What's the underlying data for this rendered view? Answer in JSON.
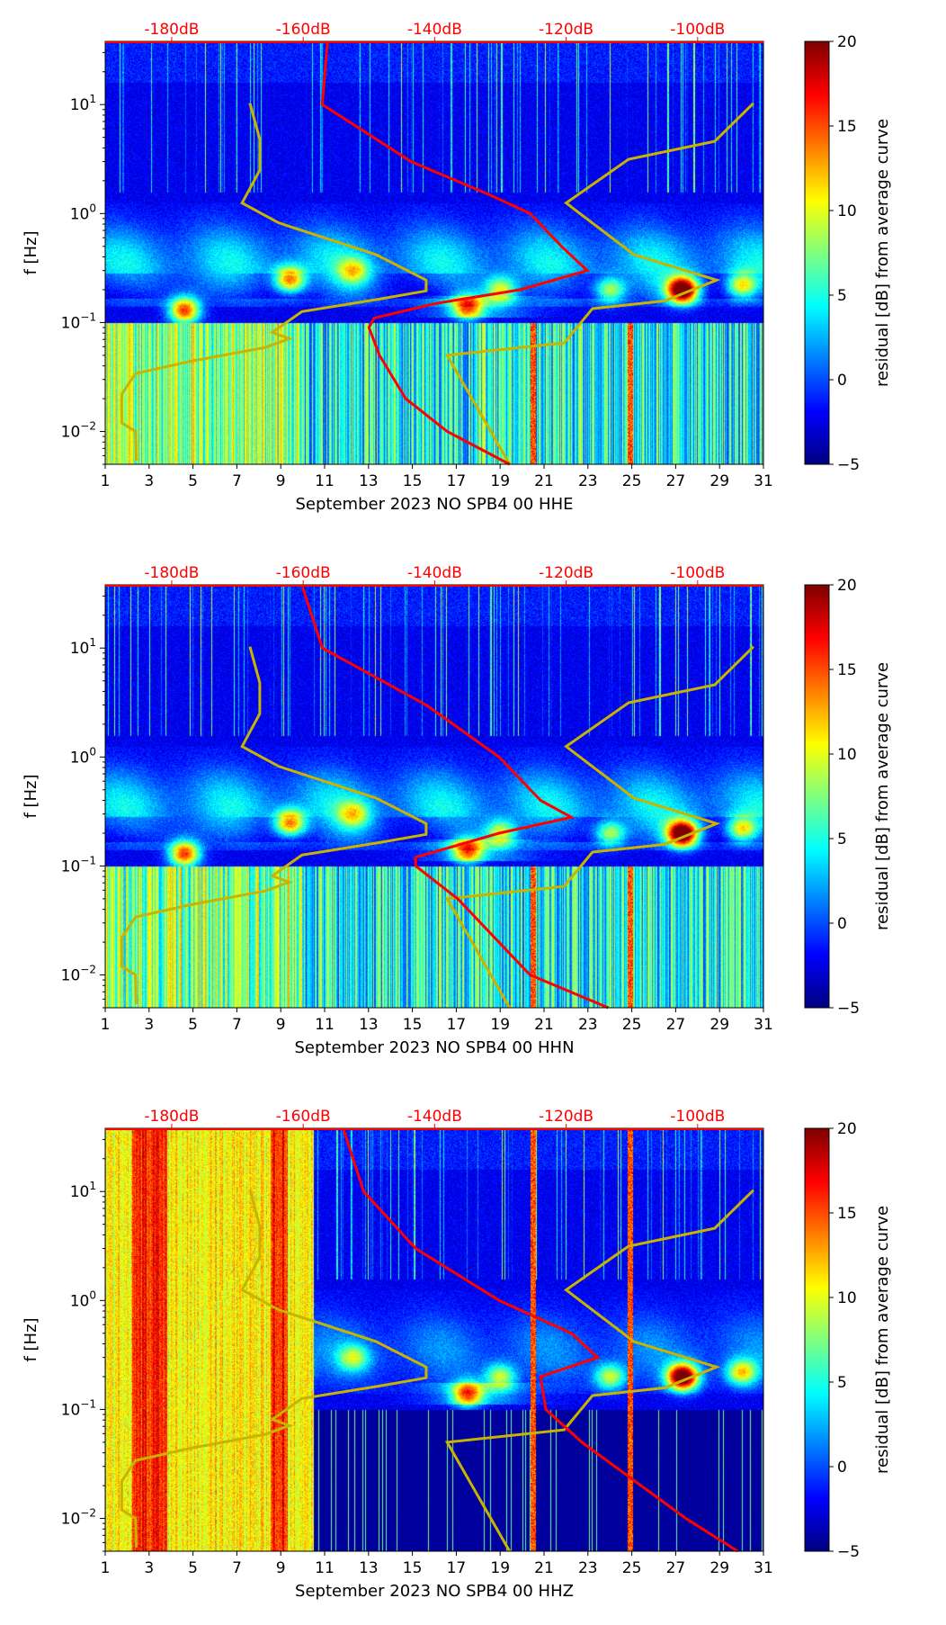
{
  "chart_data": [
    {
      "type": "heatmap",
      "title": "",
      "xlabel": "September 2023 NO SPB4 00 HHE",
      "ylabel": "f [Hz]",
      "colorbar_label": "residual [dB] from average curve",
      "xlim": [
        1,
        31
      ],
      "ylim": [
        0.005,
        38
      ],
      "yscale": "log",
      "x_ticks": [
        "1",
        "3",
        "5",
        "7",
        "9",
        "11",
        "13",
        "15",
        "17",
        "19",
        "21",
        "23",
        "25",
        "27",
        "29",
        "31"
      ],
      "y_ticks": [
        {
          "value": 10,
          "label": "10",
          "exp": "1"
        },
        {
          "value": 1,
          "label": "10",
          "exp": "0"
        },
        {
          "value": 0.1,
          "label": "10",
          "exp": "−1"
        },
        {
          "value": 0.01,
          "label": "10",
          "exp": "−2"
        }
      ],
      "top_axis_ticks": [
        "-180dB",
        "-160dB",
        "-140dB",
        "-120dB",
        "-100dB"
      ],
      "colorbar_range": [
        -5,
        20
      ],
      "colorbar_ticks": [
        "−5",
        "0",
        "5",
        "10",
        "15",
        "20"
      ],
      "colormap": "jet",
      "average_curve_db": {
        "color": "#ff0000",
        "f": [
          38,
          10,
          3,
          1.5,
          1,
          0.5,
          0.3,
          0.2,
          0.15,
          0.11,
          0.09,
          0.05,
          0.02,
          0.01,
          0.005
        ],
        "db": [
          -156.3,
          -157.1,
          -143.6,
          -131.8,
          -125.5,
          -120.7,
          -116.8,
          -127,
          -139.7,
          -149.2,
          -150,
          -148.4,
          -144.4,
          -138.1,
          -128.6
        ]
      },
      "noise_model_low_db": {
        "color": "#c8b400",
        "f": [
          10.3,
          4.8,
          2.5,
          1.25,
          0.82,
          0.42,
          0.245,
          0.195,
          0.164,
          0.126,
          0.081,
          0.071,
          0.059,
          0.044,
          0.034,
          0.022,
          0.012,
          0.01,
          0.0054
        ],
        "db": [
          -168.1,
          -166.6,
          -166.6,
          -169.3,
          -163.7,
          -148.9,
          -141.3,
          -141.3,
          -148.4,
          -160.2,
          -164.7,
          -162.1,
          -165.8,
          -177.2,
          -185.5,
          -187.6,
          -187.6,
          -185.5,
          -185.4
        ]
      },
      "noise_model_high_db": {
        "color": "#c8b400",
        "f": [
          10.3,
          4.6,
          3.15,
          1.25,
          0.42,
          0.245,
          0.158,
          0.134,
          0.065,
          0.05,
          0.005
        ],
        "db": [
          -91.5,
          -97.4,
          -110.5,
          -120,
          -109.7,
          -97.1,
          -105,
          -116,
          -120.3,
          -138.1,
          -128.6
        ]
      }
    },
    {
      "type": "heatmap",
      "title": "",
      "xlabel": "September 2023 NO SPB4 00 HHN",
      "ylabel": "f [Hz]",
      "colorbar_label": "residual [dB] from average curve",
      "xlim": [
        1,
        31
      ],
      "ylim": [
        0.005,
        38
      ],
      "yscale": "log",
      "x_ticks": [
        "1",
        "3",
        "5",
        "7",
        "9",
        "11",
        "13",
        "15",
        "17",
        "19",
        "21",
        "23",
        "25",
        "27",
        "29",
        "31"
      ],
      "y_ticks": [
        {
          "value": 10,
          "label": "10",
          "exp": "1"
        },
        {
          "value": 1,
          "label": "10",
          "exp": "0"
        },
        {
          "value": 0.1,
          "label": "10",
          "exp": "−1"
        },
        {
          "value": 0.01,
          "label": "10",
          "exp": "−2"
        }
      ],
      "top_axis_ticks": [
        "-180dB",
        "-160dB",
        "-140dB",
        "-120dB",
        "-100dB"
      ],
      "colorbar_range": [
        -5,
        20
      ],
      "colorbar_ticks": [
        "−5",
        "0",
        "5",
        "10",
        "15",
        "20"
      ],
      "colormap": "jet",
      "average_curve_db": {
        "color": "#ff0000",
        "f": [
          38,
          10,
          3,
          1,
          0.4,
          0.28,
          0.2,
          0.12,
          0.1,
          0.05,
          0.01,
          0.005
        ],
        "db": [
          -160.2,
          -157.1,
          -141.3,
          -130.2,
          -123.9,
          -119.2,
          -130.2,
          -142.9,
          -142.9,
          -136.5,
          -125.5,
          -113.6
        ]
      },
      "noise_model_low_db": {
        "color": "#c8b400",
        "f": [
          10.3,
          4.8,
          2.5,
          1.25,
          0.82,
          0.42,
          0.245,
          0.195,
          0.164,
          0.126,
          0.081,
          0.071,
          0.059,
          0.044,
          0.034,
          0.022,
          0.012,
          0.01,
          0.0054
        ],
        "db": [
          -168.1,
          -166.6,
          -166.6,
          -169.3,
          -163.7,
          -148.9,
          -141.3,
          -141.3,
          -148.4,
          -160.2,
          -164.7,
          -162.1,
          -165.8,
          -177.2,
          -185.5,
          -187.6,
          -187.6,
          -185.5,
          -185.4
        ]
      },
      "noise_model_high_db": {
        "color": "#c8b400",
        "f": [
          10.3,
          4.6,
          3.15,
          1.25,
          0.42,
          0.245,
          0.158,
          0.134,
          0.065,
          0.05,
          0.005
        ],
        "db": [
          -91.5,
          -97.4,
          -110.5,
          -120,
          -109.7,
          -97.1,
          -105,
          -116,
          -120.3,
          -138.1,
          -128.6
        ]
      }
    },
    {
      "type": "heatmap",
      "title": "",
      "xlabel": "September 2023 NO SPB4 00 HHZ",
      "ylabel": "f [Hz]",
      "colorbar_label": "residual [dB] from average curve",
      "xlim": [
        1,
        31
      ],
      "ylim": [
        0.005,
        38
      ],
      "yscale": "log",
      "x_ticks": [
        "1",
        "3",
        "5",
        "7",
        "9",
        "11",
        "13",
        "15",
        "17",
        "19",
        "21",
        "23",
        "25",
        "27",
        "29",
        "31"
      ],
      "y_ticks": [
        {
          "value": 10,
          "label": "10",
          "exp": "1"
        },
        {
          "value": 1,
          "label": "10",
          "exp": "0"
        },
        {
          "value": 0.1,
          "label": "10",
          "exp": "−1"
        },
        {
          "value": 0.01,
          "label": "10",
          "exp": "−2"
        }
      ],
      "top_axis_ticks": [
        "-180dB",
        "-160dB",
        "-140dB",
        "-120dB",
        "-100dB"
      ],
      "colorbar_range": [
        -5,
        20
      ],
      "colorbar_ticks": [
        "−5",
        "0",
        "5",
        "10",
        "15",
        "20"
      ],
      "colormap": "jet",
      "average_curve_db": {
        "color": "#ff0000",
        "f": [
          38,
          10,
          3,
          1,
          0.5,
          0.3,
          0.2,
          0.1,
          0.05,
          0.01,
          0.005
        ],
        "db": [
          -153.9,
          -150.8,
          -142.9,
          -130.2,
          -119.2,
          -115.2,
          -123.9,
          -123.1,
          -117.6,
          -101.8,
          -93.9
        ]
      },
      "noise_model_low_db": {
        "color": "#c8b400",
        "f": [
          10.3,
          4.8,
          2.5,
          1.25,
          0.82,
          0.42,
          0.245,
          0.195,
          0.164,
          0.126,
          0.081,
          0.071,
          0.059,
          0.044,
          0.034,
          0.022,
          0.012,
          0.01,
          0.0054
        ],
        "db": [
          -168.1,
          -166.6,
          -166.6,
          -169.3,
          -163.7,
          -148.9,
          -141.3,
          -141.3,
          -148.4,
          -160.2,
          -164.7,
          -162.1,
          -165.8,
          -177.2,
          -185.5,
          -187.6,
          -187.6,
          -185.5,
          -185.4
        ]
      },
      "noise_model_high_db": {
        "color": "#c8b400",
        "f": [
          10.3,
          4.6,
          3.15,
          1.25,
          0.42,
          0.245,
          0.158,
          0.134,
          0.065,
          0.05,
          0.005
        ],
        "db": [
          -91.5,
          -97.4,
          -110.5,
          -120,
          -109.7,
          -97.1,
          -105,
          -116,
          -120.3,
          -138.1,
          -128.6
        ]
      }
    }
  ]
}
